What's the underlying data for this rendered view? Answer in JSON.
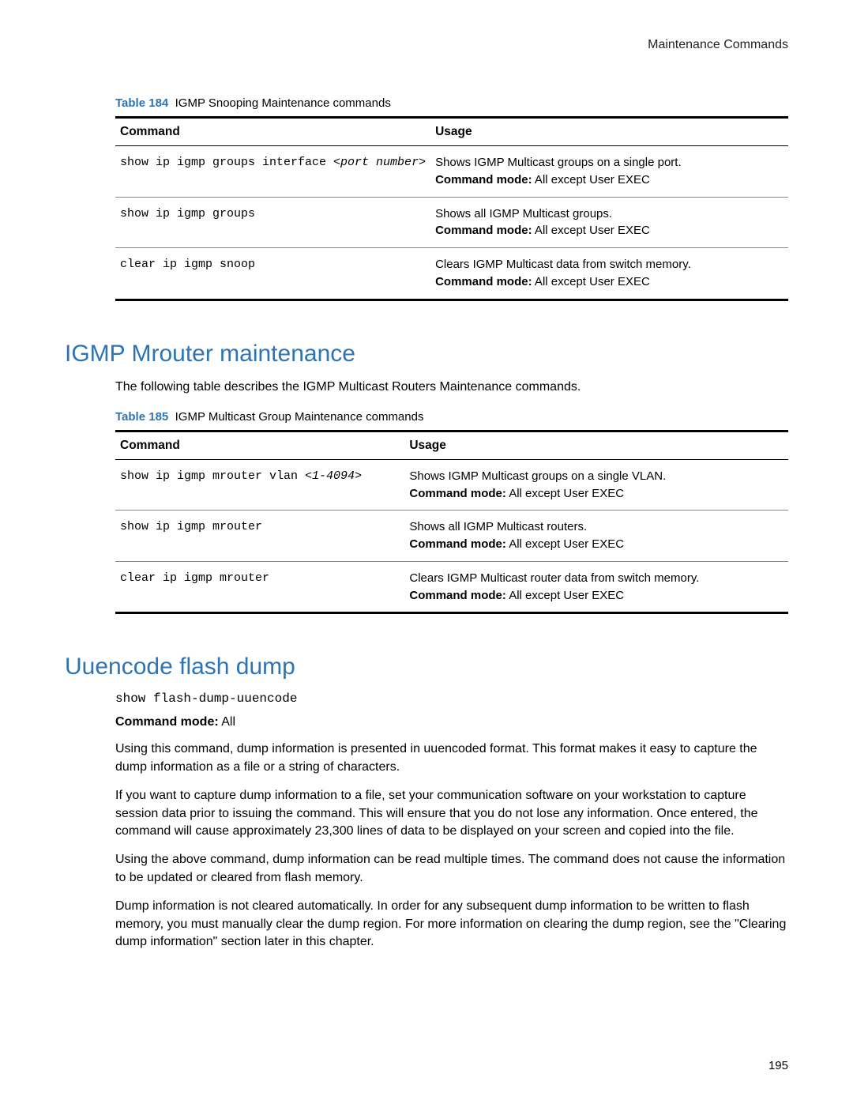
{
  "colors": {
    "heading": "#2e74b5",
    "caption": "#2e74b5",
    "text": "#000000",
    "rule_thick": "#000000",
    "rule_thin": "#888888",
    "background": "#ffffff"
  },
  "header": {
    "right": "Maintenance Commands"
  },
  "page_number": "195",
  "table184": {
    "caption_label": "Table 184",
    "caption_rest": "IGMP Snooping Maintenance commands",
    "col_command": "Command",
    "col_usage": "Usage",
    "rows": [
      {
        "cmd_pre": "show ip igmp groups interface ",
        "cmd_arg": "<port number>",
        "usage_line": "Shows IGMP Multicast groups on a single port.",
        "mode_label": "Command mode:",
        "mode_value": " All except User EXEC"
      },
      {
        "cmd_pre": "show ip igmp groups",
        "cmd_arg": "",
        "usage_line": "Shows all IGMP Multicast groups.",
        "mode_label": "Command mode:",
        "mode_value": " All except User EXEC"
      },
      {
        "cmd_pre": "clear ip igmp snoop",
        "cmd_arg": "",
        "usage_line": "Clears IGMP Multicast data from switch memory.",
        "mode_label": "Command mode:",
        "mode_value": " All except User EXEC"
      }
    ]
  },
  "section_mrouter": {
    "title": "IGMP Mrouter maintenance",
    "intro": "The following table describes the IGMP Multicast Routers Maintenance commands."
  },
  "table185": {
    "caption_label": "Table 185",
    "caption_rest": "IGMP Multicast Group Maintenance commands",
    "col_command": "Command",
    "col_usage": "Usage",
    "rows": [
      {
        "cmd_pre": "show ip igmp mrouter vlan ",
        "cmd_arg": "<1-4094>",
        "usage_line": "Shows IGMP Multicast groups on a single VLAN.",
        "mode_label": "Command mode:",
        "mode_value": " All except User EXEC"
      },
      {
        "cmd_pre": "show ip igmp mrouter",
        "cmd_arg": "",
        "usage_line": "Shows all IGMP Multicast routers.",
        "mode_label": "Command mode:",
        "mode_value": " All except User EXEC"
      },
      {
        "cmd_pre": "clear ip igmp mrouter",
        "cmd_arg": "",
        "usage_line": "Clears IGMP Multicast router data from switch memory.",
        "mode_label": "Command mode:",
        "mode_value": " All except User EXEC"
      }
    ]
  },
  "section_uuencode": {
    "title": "Uuencode flash dump",
    "code": "show flash-dump-uuencode",
    "mode_label": "Command mode:",
    "mode_value": " All",
    "p1": "Using this command, dump information is presented in uuencoded format. This format makes it easy to capture the dump information as a file or a string of characters.",
    "p2": "If you want to capture dump information to a file, set your communication software on your workstation to capture session data prior to issuing the command. This will ensure that you do not lose any information. Once entered, the command will cause approximately 23,300 lines of data to be displayed on your screen and copied into the file.",
    "p3": "Using the above command, dump information can be read multiple times. The command does not cause the information to be updated or cleared from flash memory.",
    "p4": "Dump information is not cleared automatically. In order for any subsequent dump information to be written to flash memory, you must manually clear the dump region. For more information on clearing the dump region, see the \"Clearing dump information\" section later in this chapter."
  }
}
